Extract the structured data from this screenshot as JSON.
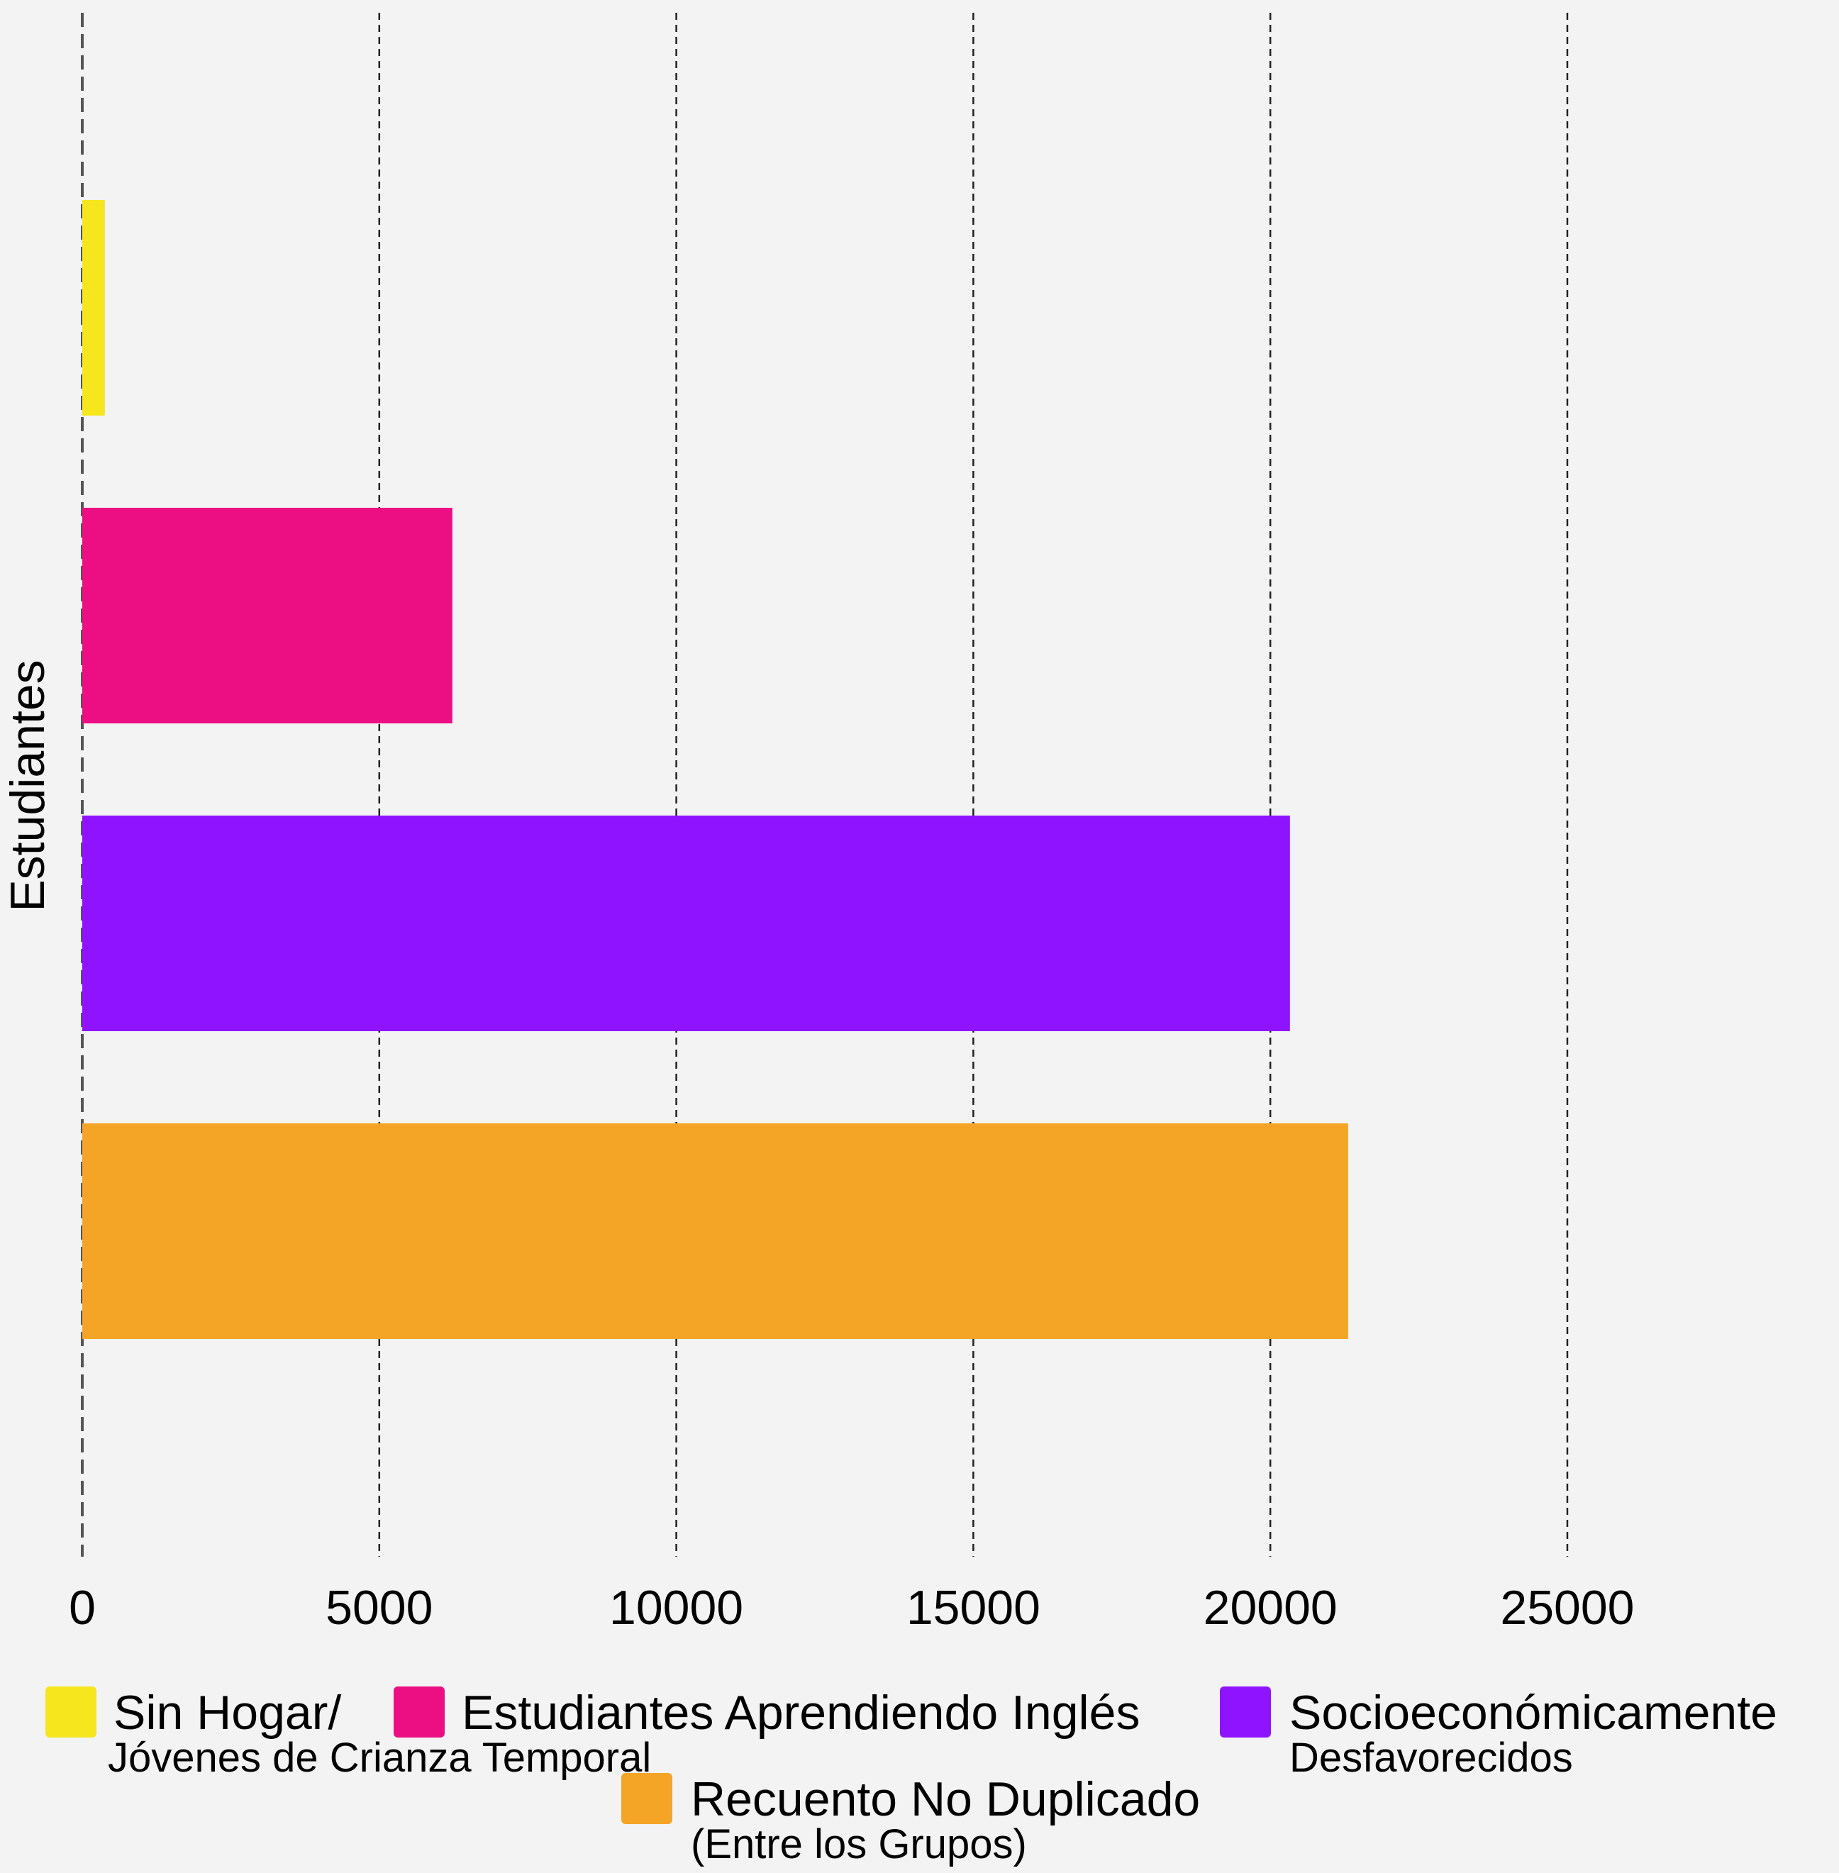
{
  "chart_data": {
    "type": "bar",
    "orientation": "horizontal",
    "ylabel": "Estudiantes",
    "xlabel": "",
    "xlim": [
      0,
      29000
    ],
    "x_ticks": [
      0,
      5000,
      10000,
      15000,
      20000,
      25000
    ],
    "grid": "vertical dashed",
    "legend_position": "bottom",
    "series": [
      {
        "name": "Sin Hogar/ Jóvenes de Crianza Temporal",
        "label_lines": [
          "Sin Hogar/",
          "Jóvenes de Crianza Temporal"
        ],
        "value": 380,
        "color": "#f5e61e"
      },
      {
        "name": "Estudiantes Aprendiendo Inglés",
        "label_lines": [
          "Estudiantes Aprendiendo Inglés"
        ],
        "value": 6230,
        "color": "#ec0e83"
      },
      {
        "name": "Socioeconómicamente Desfavorecidos",
        "label_lines": [
          "Socioeconómicamente",
          "Desfavorecidos"
        ],
        "value": 20330,
        "color": "#8f13ff"
      },
      {
        "name": "Recuento No Duplicado (Entre los Grupos)",
        "label_lines": [
          "Recuento No Duplicado",
          "(Entre los Grupos)"
        ],
        "value": 21310,
        "color": "#f4a526"
      }
    ]
  }
}
